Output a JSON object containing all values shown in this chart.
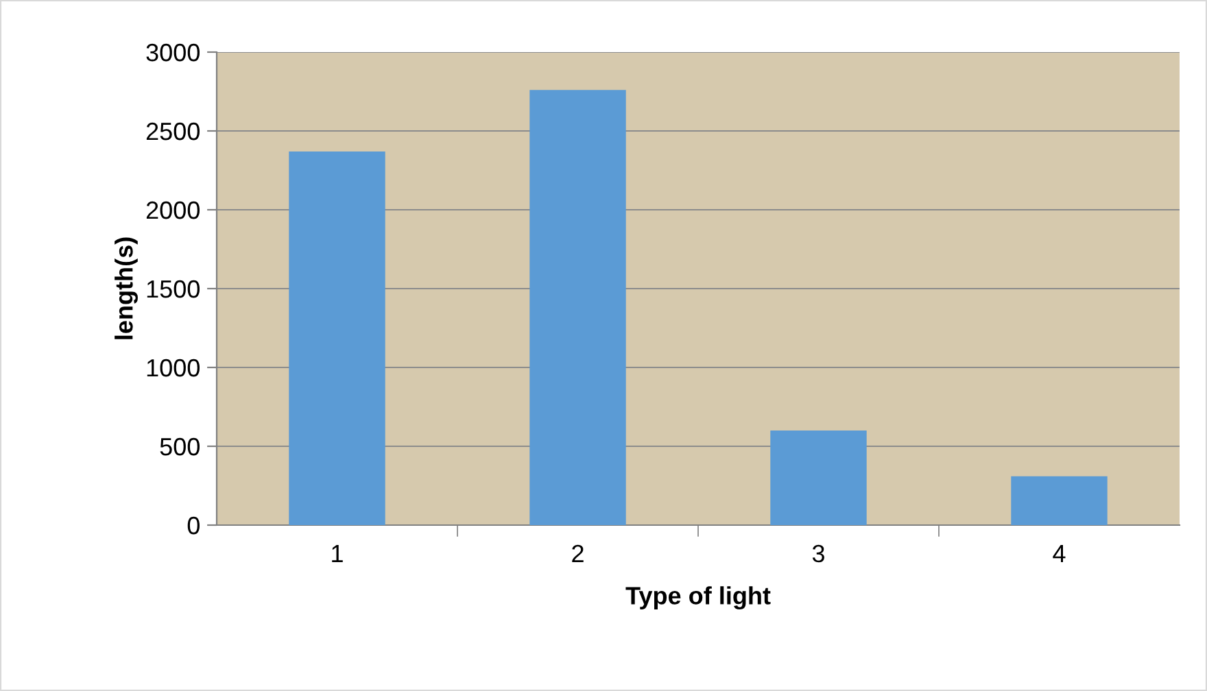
{
  "chart_data": {
    "type": "bar",
    "xlabel": "Type of light",
    "ylabel": "length(s)",
    "categories": [
      "1",
      "2",
      "3",
      "4"
    ],
    "values": [
      2370,
      2760,
      600,
      310
    ],
    "color": "#5b9bd5",
    "ylim": [
      0,
      3000
    ],
    "yticks": [
      0,
      500,
      1000,
      1500,
      2000,
      2500,
      3000
    ],
    "grid": "y",
    "legend": false
  }
}
